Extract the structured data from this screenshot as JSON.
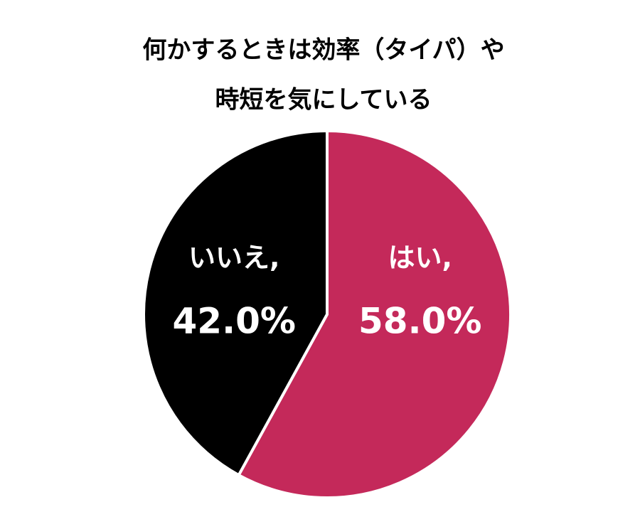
{
  "chart_data": {
    "type": "pie",
    "title": [
      "何かするときは効率（タイパ）や",
      "時短を気にしている"
    ],
    "categories": [
      "はい,",
      "いいえ,"
    ],
    "values": [
      58.0,
      42.0
    ],
    "value_labels": [
      "58.0%",
      "42.0%"
    ],
    "colors": [
      "#c4295a",
      "#000000"
    ]
  }
}
